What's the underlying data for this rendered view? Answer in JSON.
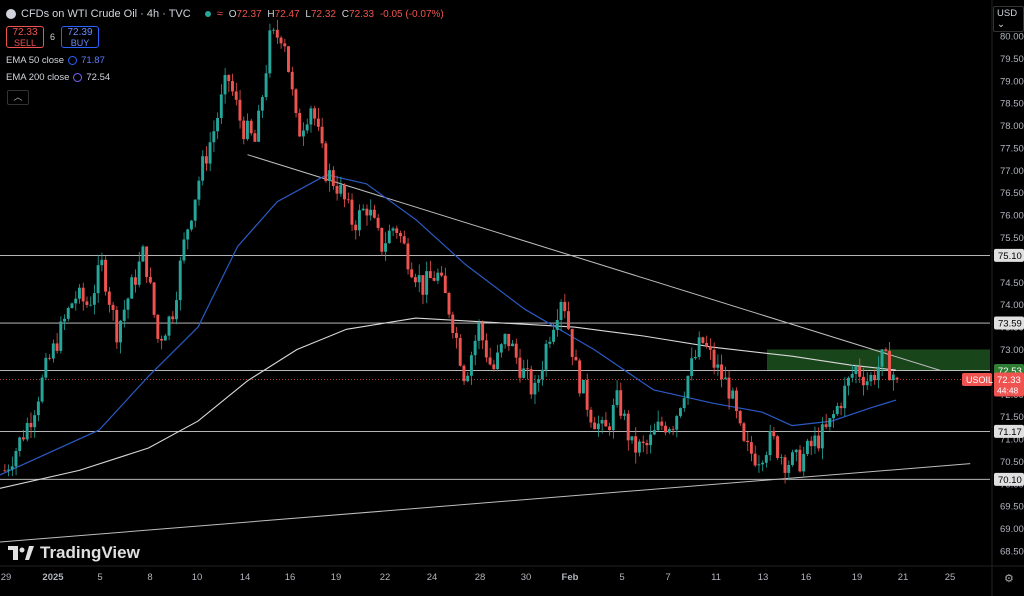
{
  "header": {
    "title": "CFDs on WTI Crude Oil · 4h · TVC",
    "ohlc": [
      {
        "k": "O",
        "v": "72.37"
      },
      {
        "k": "H",
        "v": "72.47"
      },
      {
        "k": "L",
        "v": "72.32"
      },
      {
        "k": "C",
        "v": "72.33"
      }
    ],
    "change": "-0.05 (-0.07%)"
  },
  "trade": {
    "sell_price": "72.33",
    "sell_label": "SELL",
    "spread": "6",
    "buy_price": "72.39",
    "buy_label": "BUY"
  },
  "indicators": [
    {
      "label": "EMA 50 close",
      "value": "71.87",
      "color": "#2962ff"
    },
    {
      "label": "EMA 200 close",
      "value": "72.54",
      "color": "#7b61ff"
    }
  ],
  "currency": "USD",
  "branding": "TradingView",
  "colors": {
    "up": "#26a69a",
    "down": "#ef5350",
    "ema50": "#2b59c3",
    "ema200": "#d8d8d8"
  },
  "chart_data": {
    "type": "candlestick",
    "timeframe": "4h",
    "x_tick_labels": [
      "29",
      "2025",
      "5",
      "8",
      "10",
      "14",
      "16",
      "19",
      "22",
      "24",
      "28",
      "30",
      "Feb",
      "5",
      "7",
      "11",
      "13",
      "16",
      "19",
      "21",
      "25"
    ],
    "y_ticks": [
      "80.00",
      "79.50",
      "79.00",
      "78.50",
      "78.00",
      "77.50",
      "77.00",
      "76.50",
      "76.00",
      "75.50",
      "74.50",
      "74.00",
      "73.50",
      "73.00",
      "72.00",
      "71.50",
      "71.00",
      "70.50",
      "70.00",
      "69.50",
      "69.00",
      "68.50"
    ],
    "ylim": [
      68.1,
      80.55
    ],
    "horizontal_levels": [
      75.1,
      73.59,
      72.53,
      71.17,
      70.1
    ],
    "level_labels": [
      "75.10",
      "73.59",
      "72.53",
      "71.17",
      "70.10"
    ],
    "resistance_zone": [
      72.53,
      73.0
    ],
    "last_price": {
      "symbol": "USOIL",
      "price": "72.33",
      "countdown": "44:48"
    },
    "close_path": [
      70.3,
      70.9,
      71.6,
      72.6,
      73.4,
      74.2,
      74.0,
      74.9,
      73.4,
      74.3,
      75.2,
      73.2,
      73.8,
      75.6,
      76.9,
      77.9,
      79.1,
      78.0,
      77.6,
      79.9,
      80.1,
      77.8,
      78.5,
      77.0,
      76.6,
      75.8,
      76.2,
      75.3,
      75.8,
      75.0,
      74.4,
      74.7,
      73.8,
      72.4,
      73.5,
      72.5,
      73.3,
      72.6,
      72.0,
      73.3,
      74.3,
      72.5,
      71.6,
      71.1,
      71.9,
      70.8,
      70.8,
      71.3,
      71.4,
      72.4,
      73.2,
      72.6,
      72.1,
      70.8,
      70.6,
      71.0,
      70.5,
      70.5,
      70.9,
      71.2,
      71.9,
      72.6,
      72.3,
      72.8,
      72.33
    ],
    "ema50": [
      [
        0,
        70.2
      ],
      [
        0.1,
        71.2
      ],
      [
        0.15,
        72.4
      ],
      [
        0.2,
        73.5
      ],
      [
        0.24,
        75.3
      ],
      [
        0.28,
        76.3
      ],
      [
        0.33,
        76.9
      ],
      [
        0.37,
        76.7
      ],
      [
        0.42,
        75.9
      ],
      [
        0.47,
        74.9
      ],
      [
        0.53,
        73.9
      ],
      [
        0.6,
        73.0
      ],
      [
        0.66,
        72.1
      ],
      [
        0.72,
        71.8
      ],
      [
        0.77,
        71.6
      ],
      [
        0.8,
        71.3
      ],
      [
        0.84,
        71.4
      ],
      [
        0.88,
        71.7
      ],
      [
        0.905,
        71.87
      ]
    ],
    "ema200": [
      [
        0,
        69.9
      ],
      [
        0.08,
        70.3
      ],
      [
        0.15,
        70.8
      ],
      [
        0.2,
        71.4
      ],
      [
        0.25,
        72.3
      ],
      [
        0.3,
        73.0
      ],
      [
        0.35,
        73.45
      ],
      [
        0.42,
        73.7
      ],
      [
        0.5,
        73.6
      ],
      [
        0.58,
        73.5
      ],
      [
        0.65,
        73.3
      ],
      [
        0.72,
        73.05
      ],
      [
        0.8,
        72.85
      ],
      [
        0.86,
        72.65
      ],
      [
        0.905,
        72.54
      ]
    ],
    "trendlines": [
      {
        "from": [
          0.25,
          77.35
        ],
        "to": [
          0.95,
          72.53
        ]
      },
      {
        "from": [
          0.0,
          68.7
        ],
        "to": [
          0.98,
          70.45
        ]
      }
    ]
  }
}
